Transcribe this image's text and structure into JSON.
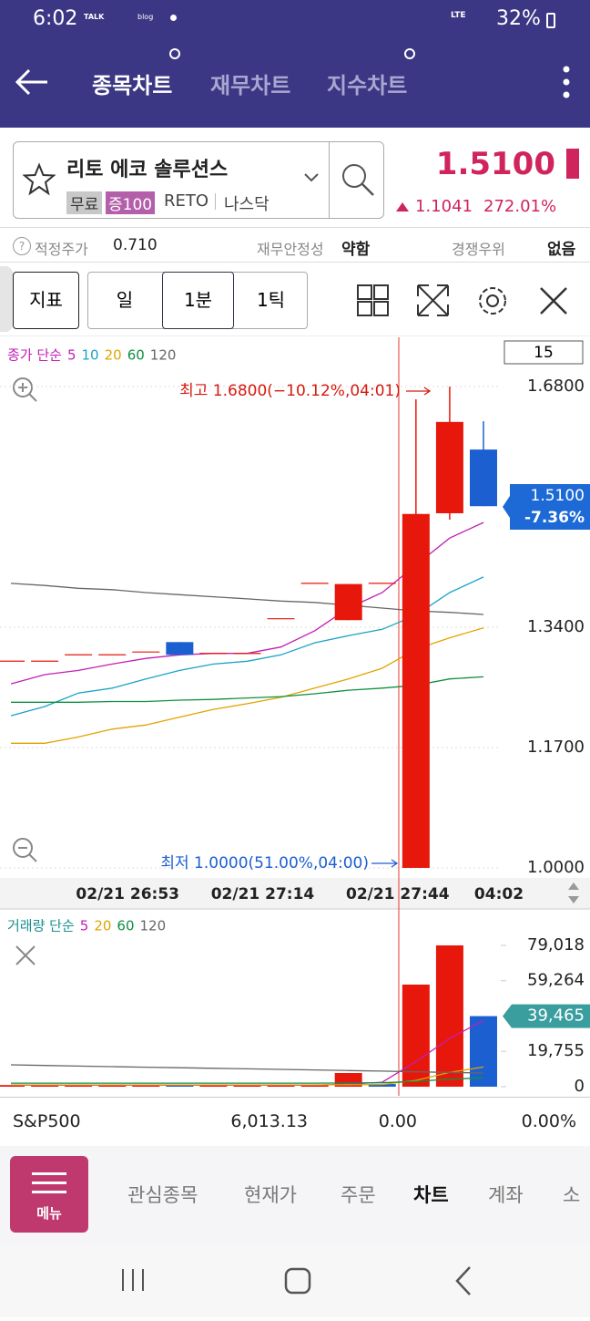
{
  "status_bar": {
    "time": "6:02",
    "icons": [
      "TALK",
      "blog",
      "LTE"
    ],
    "battery": "32%"
  },
  "app_bar": {
    "tabs": [
      "종목차트",
      "재무차트",
      "지수차트"
    ]
  },
  "stock": {
    "name": "리토 에코 솔루션스",
    "tags": [
      "무료",
      "증100",
      "RETO",
      "나스닥"
    ],
    "price": "1.5100",
    "change": "1.1041",
    "change_pct": "272.01%"
  },
  "info_row": {
    "fair_price_label": "적정주가",
    "fair_price": "0.710",
    "stability_label": "재무안정성",
    "stability": "약함",
    "competitive_label": "경쟁우위",
    "competitive": "없음"
  },
  "toolbar": {
    "indicator": "지표",
    "periods": [
      "일",
      "1분",
      "1틱"
    ]
  },
  "chart_data": [
    {
      "type": "candlestick",
      "legend_title": "종가 단순",
      "period": "15",
      "categories": [
        null,
        null,
        null,
        "02/21 26:53",
        null,
        null,
        null,
        "02/21 27:14",
        null,
        null,
        null,
        "02/21 27:44",
        null,
        null,
        "04:02"
      ],
      "open": [
        1.292,
        1.292,
        1.301,
        1.301,
        1.305,
        1.319,
        1.303,
        1.303,
        1.352,
        1.402,
        1.35,
        1.402,
        1.0,
        1.501,
        1.591
      ],
      "high": [
        1.292,
        1.292,
        1.301,
        1.301,
        1.305,
        1.319,
        1.303,
        1.303,
        1.352,
        1.402,
        1.401,
        1.402,
        1.662,
        1.68,
        1.631
      ],
      "low": [
        1.292,
        1.292,
        1.301,
        1.301,
        1.305,
        1.301,
        1.303,
        1.303,
        1.352,
        1.402,
        1.35,
        1.402,
        1.0,
        1.492,
        1.511
      ],
      "close": [
        1.292,
        1.292,
        1.301,
        1.301,
        1.305,
        1.301,
        1.303,
        1.303,
        1.352,
        1.402,
        1.401,
        1.402,
        1.5,
        1.63,
        1.511
      ],
      "up_color": "#e8170c",
      "down_color": "#1b5fd1",
      "series": [
        {
          "name": "5",
          "color": "#c21fb5",
          "values": [
            1.26,
            1.273,
            1.279,
            1.288,
            1.296,
            1.301,
            1.303,
            1.303,
            1.312,
            1.335,
            1.367,
            1.389,
            1.428,
            1.466,
            1.488
          ]
        },
        {
          "name": "10",
          "color": "#1aa3c4",
          "values": [
            1.215,
            1.228,
            1.247,
            1.254,
            1.267,
            1.279,
            1.288,
            1.292,
            1.301,
            1.318,
            1.328,
            1.337,
            1.357,
            1.389,
            1.411
          ]
        },
        {
          "name": "20",
          "color": "#e0a400",
          "values": [
            1.176,
            1.176,
            1.185,
            1.196,
            1.202,
            1.213,
            1.224,
            1.232,
            1.241,
            1.254,
            1.267,
            1.282,
            1.309,
            1.325,
            1.339
          ]
        },
        {
          "name": "60",
          "color": "#109040",
          "values": [
            1.234,
            1.234,
            1.234,
            1.235,
            1.235,
            1.237,
            1.238,
            1.24,
            1.242,
            1.246,
            1.251,
            1.254,
            1.258,
            1.267,
            1.27
          ]
        },
        {
          "name": "120",
          "color": "#666666",
          "values": [
            1.402,
            1.399,
            1.395,
            1.393,
            1.389,
            1.386,
            1.383,
            1.38,
            1.377,
            1.375,
            1.371,
            1.367,
            1.363,
            1.361,
            1.358
          ]
        }
      ],
      "ylim": [
        1.0,
        1.68
      ],
      "yticks": [
        {
          "value": 1.68,
          "label": "1.6800"
        },
        {
          "value": 1.34,
          "label": "1.3400"
        },
        {
          "value": 1.17,
          "label": "1.1700"
        },
        {
          "value": 1.0,
          "label": "1.0000"
        }
      ],
      "last_price": {
        "value": 1.51,
        "label": "1.5100",
        "change": "-7.36%"
      },
      "annotations": {
        "high": "최고 1.6800(−10.12%,04:01)",
        "low": "최저 1.0000(51.00%,04:00)"
      },
      "grid": true
    },
    {
      "type": "bar",
      "legend_title": "거래량 단순",
      "values": [
        900,
        900,
        700,
        700,
        900,
        1000,
        900,
        900,
        1100,
        1200,
        7647,
        1500,
        57100,
        79018,
        39465
      ],
      "colors": [
        "#e8170c",
        "#e8170c",
        "#e8170c",
        "#e8170c",
        "#e8170c",
        "#1b5fd1",
        "#e8170c",
        "#e8170c",
        "#e8170c",
        "#e8170c",
        "#e8170c",
        "#1b5fd1",
        "#e8170c",
        "#e8170c",
        "#1b5fd1"
      ],
      "series": [
        {
          "name": "5",
          "color": "#c21fb5",
          "values": [
            800,
            800,
            800,
            800,
            800,
            800,
            800,
            800,
            800,
            800,
            1500,
            2500,
            14000,
            27000,
            37000
          ]
        },
        {
          "name": "20",
          "color": "#e0a400",
          "values": [
            1000,
            1000,
            1000,
            1000,
            1000,
            1000,
            1000,
            1000,
            1000,
            1000,
            1100,
            1200,
            3500,
            8000,
            11000
          ]
        },
        {
          "name": "60",
          "color": "#109040",
          "values": [
            2000,
            2000,
            2000,
            2000,
            2000,
            2000,
            2000,
            2000,
            2000,
            2000,
            2100,
            2200,
            3000,
            4200,
            5000
          ]
        },
        {
          "name": "120",
          "color": "#666666",
          "values": [
            12235,
            11900,
            11500,
            11200,
            10900,
            10600,
            10300,
            10000,
            9700,
            9400,
            9000,
            8700,
            8300,
            8000,
            7647
          ]
        }
      ],
      "ylim": [
        0,
        79018
      ],
      "yticks": [
        0,
        {
          "value": 19755,
          "label": "19,755"
        },
        {
          "value": 59264,
          "label": "59,264"
        },
        {
          "value": 79018,
          "label": "79,018"
        }
      ],
      "last_value": {
        "value": 39465,
        "label": "39,465"
      }
    }
  ],
  "index_row": {
    "name": "S&P500",
    "value": "6,013.13",
    "change": "0.00",
    "change_pct": "0.00%"
  },
  "bottom_nav": {
    "menu": "메뉴",
    "items": [
      "관심종목",
      "현재가",
      "주문",
      "차트",
      "계좌",
      "소"
    ],
    "active": "차트"
  }
}
